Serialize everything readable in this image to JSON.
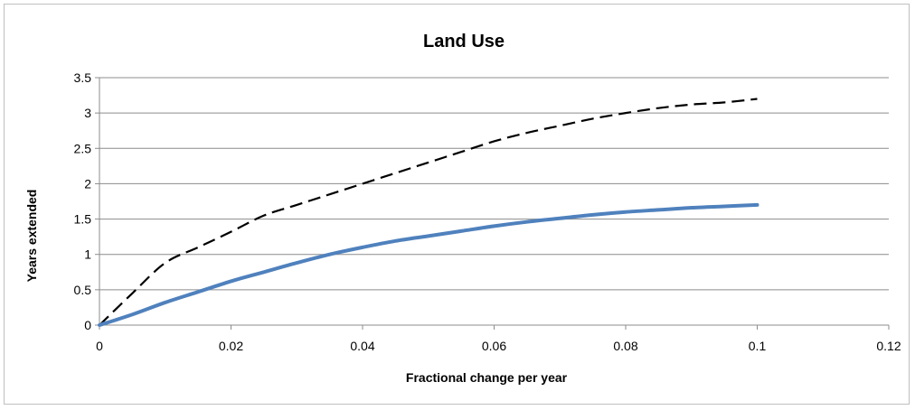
{
  "chart_data": {
    "type": "line",
    "title": "Land Use",
    "xlabel": "Fractional change  per year",
    "ylabel": "Years extended",
    "xlim": [
      0,
      0.12
    ],
    "ylim": [
      0,
      3.5
    ],
    "x_ticks": [
      "0",
      "0.02",
      "0.04",
      "0.06",
      "0.08",
      "0.1",
      "0.12"
    ],
    "y_ticks": [
      "0",
      "0.5",
      "1",
      "1.5",
      "2",
      "2.5",
      "3",
      "3.5"
    ],
    "grid": "horizontal",
    "legend": "none",
    "series": [
      {
        "style": "dashed",
        "color": "#000000",
        "x": [
          0,
          0.005,
          0.01,
          0.015,
          0.02,
          0.025,
          0.03,
          0.035,
          0.04,
          0.045,
          0.05,
          0.055,
          0.06,
          0.065,
          0.07,
          0.075,
          0.08,
          0.085,
          0.09,
          0.095,
          0.1
        ],
        "y": [
          0,
          0.45,
          0.88,
          1.1,
          1.32,
          1.55,
          1.7,
          1.85,
          2.0,
          2.15,
          2.3,
          2.45,
          2.6,
          2.72,
          2.82,
          2.92,
          3.0,
          3.07,
          3.12,
          3.15,
          3.2
        ]
      },
      {
        "style": "solid",
        "color": "#4f81bd",
        "x": [
          0,
          0.005,
          0.01,
          0.015,
          0.02,
          0.025,
          0.03,
          0.035,
          0.04,
          0.045,
          0.05,
          0.055,
          0.06,
          0.065,
          0.07,
          0.075,
          0.08,
          0.085,
          0.09,
          0.095,
          0.1
        ],
        "y": [
          0,
          0.15,
          0.32,
          0.47,
          0.62,
          0.75,
          0.88,
          1.0,
          1.1,
          1.19,
          1.26,
          1.33,
          1.4,
          1.46,
          1.51,
          1.56,
          1.6,
          1.63,
          1.66,
          1.68,
          1.7
        ]
      }
    ]
  }
}
